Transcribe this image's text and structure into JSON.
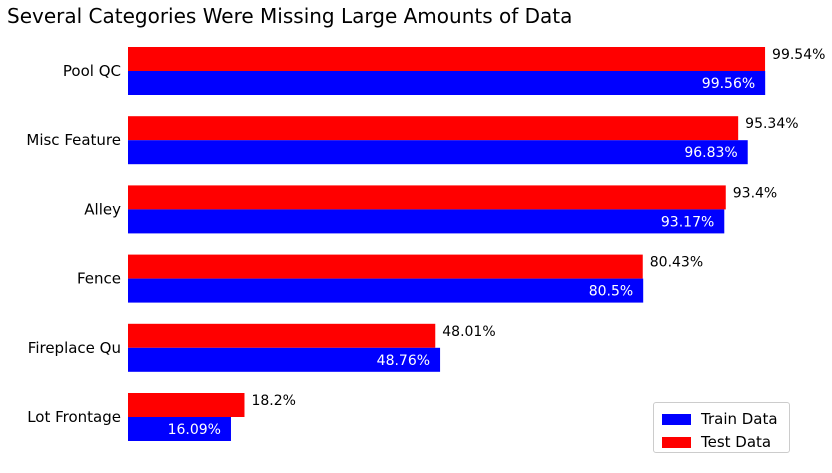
{
  "chart_data": {
    "type": "bar",
    "orientation": "horizontal",
    "title": "Several Categories Were Missing Large Amounts of Data",
    "xlabel": "",
    "ylabel": "",
    "xlim": [
      0,
      100
    ],
    "grid": false,
    "legend_position": "bottom-right",
    "categories": [
      "Pool QC",
      "Misc Feature",
      "Alley",
      "Fence",
      "Fireplace Qu",
      "Lot Frontage"
    ],
    "series": [
      {
        "name": "Train Data",
        "color": "#0000ff",
        "values": [
          99.56,
          96.83,
          93.17,
          80.5,
          48.76,
          16.09
        ],
        "labels": [
          "99.56%",
          "96.83%",
          "93.17%",
          "80.5%",
          "48.76%",
          "16.09%"
        ]
      },
      {
        "name": "Test Data",
        "color": "#ff0000",
        "values": [
          99.54,
          95.34,
          93.4,
          80.43,
          48.01,
          18.2
        ],
        "labels": [
          "99.54%",
          "95.34%",
          "93.4%",
          "80.43%",
          "48.01%",
          "18.2%"
        ]
      }
    ]
  }
}
